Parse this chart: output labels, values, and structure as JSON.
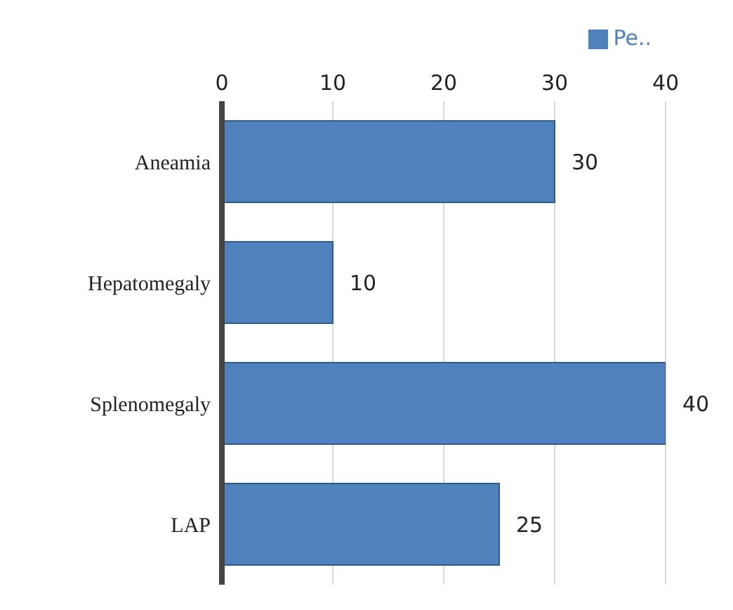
{
  "chart_data": {
    "type": "bar",
    "orientation": "horizontal",
    "categories": [
      "Aneamia",
      "Hepatomegaly",
      "Splenomegaly",
      "LAP"
    ],
    "series": [
      {
        "name": "Pe..",
        "color": "#4f81bd",
        "values": [
          30,
          10,
          40,
          25
        ]
      }
    ],
    "xlim": [
      0,
      40
    ],
    "xticks": [
      0,
      10,
      20,
      30,
      40
    ],
    "grid": "x",
    "legend": "top right",
    "data_labels": true
  }
}
